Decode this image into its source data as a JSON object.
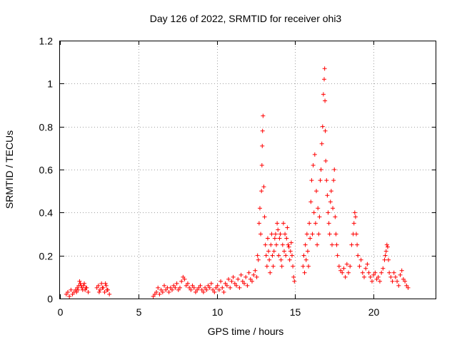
{
  "chart_data": {
    "type": "scatter",
    "title": "Day 126 of 2022, SRMTID for receiver ohi3",
    "xlabel": "GPS time / hours",
    "ylabel": "SRMTID / TECUs",
    "xlim": [
      0,
      24
    ],
    "ylim": [
      0,
      1.2
    ],
    "x_ticks": [
      0,
      5,
      10,
      15,
      20
    ],
    "x_tick_labels": [
      "0",
      "5",
      "10",
      "15",
      "20"
    ],
    "y_ticks": [
      0,
      0.2,
      0.4,
      0.6,
      0.8,
      1.0,
      1.2
    ],
    "y_tick_labels": [
      "0",
      "0.2",
      "0.4",
      "0.6",
      "0.8",
      "1",
      "1.2"
    ],
    "grid": true,
    "marker": "+",
    "series_color": "#ff0000",
    "series": [
      {
        "name": "ohi3",
        "x": [
          0.4,
          0.5,
          0.6,
          0.7,
          0.8,
          0.9,
          1.0,
          1.1,
          1.2,
          1.3,
          1.4,
          1.5,
          1.6,
          1.7,
          1.8,
          1.25,
          1.35,
          1.45,
          1.55,
          1.65,
          1.15,
          1.05,
          2.35,
          2.45,
          2.55,
          2.65,
          2.75,
          2.85,
          2.95,
          3.05,
          3.15,
          2.5,
          2.7,
          2.9,
          3.0,
          5.95,
          6.05,
          6.15,
          6.25,
          6.35,
          6.45,
          6.55,
          6.65,
          6.75,
          6.85,
          6.95,
          7.05,
          7.15,
          7.25,
          7.35,
          7.45,
          7.55,
          7.65,
          7.75,
          7.85,
          7.95,
          8.05,
          8.15,
          8.25,
          8.35,
          8.45,
          8.55,
          8.65,
          8.75,
          8.85,
          8.95,
          9.05,
          9.15,
          9.25,
          9.35,
          9.45,
          9.55,
          9.65,
          9.75,
          9.85,
          9.95,
          10.05,
          10.15,
          10.25,
          10.35,
          10.45,
          10.55,
          10.65,
          10.75,
          10.85,
          10.95,
          11.05,
          11.15,
          11.25,
          11.35,
          11.45,
          11.55,
          11.65,
          11.75,
          11.85,
          11.95,
          12.05,
          12.15,
          12.25,
          12.35,
          12.45,
          12.55,
          12.6,
          12.65,
          12.7,
          12.75,
          12.8,
          12.85,
          12.88,
          12.9,
          12.92,
          12.95,
          13.0,
          13.05,
          13.1,
          13.15,
          13.2,
          13.25,
          13.3,
          13.35,
          13.4,
          13.45,
          13.5,
          13.55,
          13.6,
          13.65,
          13.7,
          13.75,
          13.8,
          13.85,
          13.9,
          13.95,
          14.0,
          14.05,
          14.1,
          14.15,
          14.2,
          14.25,
          14.3,
          14.35,
          14.4,
          14.45,
          14.5,
          14.55,
          14.6,
          14.65,
          14.7,
          14.75,
          14.8,
          14.85,
          14.9,
          14.95,
          15.5,
          15.55,
          15.6,
          15.65,
          15.7,
          15.75,
          15.8,
          15.85,
          15.9,
          15.95,
          16.0,
          16.05,
          16.1,
          16.15,
          16.2,
          16.25,
          16.3,
          16.35,
          16.4,
          16.45,
          16.5,
          16.55,
          16.6,
          16.65,
          16.7,
          16.75,
          16.8,
          16.85,
          16.88,
          16.9,
          16.92,
          16.95,
          17.0,
          17.05,
          17.1,
          17.15,
          17.2,
          17.25,
          17.3,
          17.35,
          17.4,
          17.45,
          17.5,
          17.55,
          17.6,
          17.65,
          17.7,
          17.8,
          17.9,
          18.0,
          18.1,
          18.2,
          18.3,
          18.4,
          18.5,
          18.6,
          18.7,
          18.75,
          18.8,
          18.85,
          18.9,
          18.95,
          19.0,
          19.1,
          19.2,
          19.3,
          19.4,
          19.5,
          19.6,
          19.7,
          19.8,
          19.9,
          20.0,
          20.1,
          20.2,
          20.3,
          20.4,
          20.5,
          20.6,
          20.7,
          20.75,
          20.8,
          20.85,
          20.9,
          20.95,
          21.0,
          21.1,
          21.2,
          21.3,
          21.4,
          21.5,
          21.6,
          21.7,
          21.8,
          21.9,
          22.0,
          22.1,
          22.2
        ],
        "y": [
          0.02,
          0.03,
          0.01,
          0.04,
          0.02,
          0.03,
          0.04,
          0.05,
          0.06,
          0.07,
          0.05,
          0.06,
          0.04,
          0.05,
          0.03,
          0.08,
          0.06,
          0.04,
          0.07,
          0.05,
          0.04,
          0.03,
          0.05,
          0.06,
          0.04,
          0.07,
          0.05,
          0.03,
          0.06,
          0.04,
          0.02,
          0.03,
          0.05,
          0.07,
          0.04,
          0.01,
          0.02,
          0.03,
          0.05,
          0.02,
          0.04,
          0.03,
          0.06,
          0.04,
          0.05,
          0.03,
          0.05,
          0.04,
          0.06,
          0.05,
          0.07,
          0.04,
          0.05,
          0.08,
          0.1,
          0.09,
          0.06,
          0.07,
          0.05,
          0.04,
          0.06,
          0.05,
          0.03,
          0.04,
          0.05,
          0.06,
          0.04,
          0.03,
          0.05,
          0.04,
          0.06,
          0.05,
          0.07,
          0.04,
          0.03,
          0.05,
          0.06,
          0.04,
          0.08,
          0.05,
          0.03,
          0.07,
          0.06,
          0.09,
          0.05,
          0.08,
          0.1,
          0.07,
          0.06,
          0.09,
          0.05,
          0.11,
          0.08,
          0.07,
          0.1,
          0.06,
          0.12,
          0.09,
          0.08,
          0.11,
          0.13,
          0.1,
          0.2,
          0.18,
          0.35,
          0.42,
          0.3,
          0.5,
          0.62,
          0.71,
          0.78,
          0.85,
          0.52,
          0.38,
          0.25,
          0.2,
          0.15,
          0.28,
          0.22,
          0.18,
          0.12,
          0.25,
          0.3,
          0.2,
          0.15,
          0.22,
          0.28,
          0.3,
          0.25,
          0.35,
          0.32,
          0.2,
          0.28,
          0.3,
          0.18,
          0.15,
          0.25,
          0.35,
          0.22,
          0.3,
          0.2,
          0.28,
          0.33,
          0.25,
          0.24,
          0.18,
          0.22,
          0.26,
          0.2,
          0.15,
          0.1,
          0.08,
          0.15,
          0.2,
          0.12,
          0.25,
          0.18,
          0.3,
          0.22,
          0.15,
          0.35,
          0.28,
          0.45,
          0.55,
          0.3,
          0.62,
          0.4,
          0.67,
          0.35,
          0.5,
          0.25,
          0.42,
          0.3,
          0.38,
          0.55,
          0.6,
          0.72,
          0.8,
          0.95,
          1.02,
          1.07,
          0.92,
          0.78,
          0.64,
          0.55,
          0.48,
          0.4,
          0.35,
          0.3,
          0.45,
          0.5,
          0.25,
          0.42,
          0.55,
          0.6,
          0.38,
          0.3,
          0.25,
          0.2,
          0.15,
          0.13,
          0.12,
          0.14,
          0.1,
          0.16,
          0.12,
          0.15,
          0.25,
          0.3,
          0.35,
          0.4,
          0.38,
          0.3,
          0.25,
          0.2,
          0.15,
          0.18,
          0.12,
          0.1,
          0.14,
          0.16,
          0.12,
          0.1,
          0.08,
          0.11,
          0.12,
          0.09,
          0.1,
          0.08,
          0.12,
          0.14,
          0.18,
          0.2,
          0.22,
          0.25,
          0.24,
          0.18,
          0.12,
          0.1,
          0.08,
          0.12,
          0.1,
          0.08,
          0.06,
          0.11,
          0.13,
          0.09,
          0.08,
          0.06,
          0.05
        ]
      }
    ]
  }
}
